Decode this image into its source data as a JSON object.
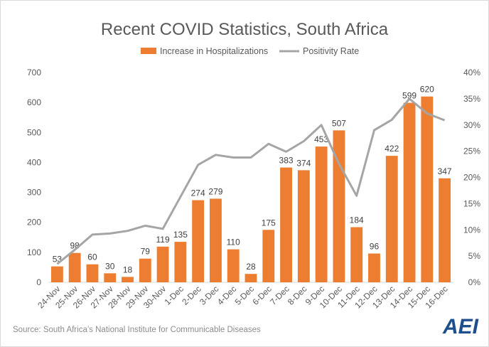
{
  "chart_data": {
    "type": "bar",
    "title": "Recent COVID Statistics, South Africa",
    "categories": [
      "24-Nov",
      "25-Nov",
      "26-Nov",
      "27-Nov",
      "28-Nov",
      "29-Nov",
      "30-Nov",
      "1-Dec",
      "2-Dec",
      "3-Dec",
      "4-Dec",
      "5-Dec",
      "6-Dec",
      "7-Dec",
      "8-Dec",
      "9-Dec",
      "10-Dec",
      "11-Dec",
      "12-Dec",
      "13-Dec",
      "14-Dec",
      "15-Dec",
      "16-Dec"
    ],
    "series": [
      {
        "name": "Increase in Hospitalizations",
        "type": "bar",
        "axis": "left",
        "color": "#ed7d31",
        "values": [
          53,
          98,
          60,
          30,
          18,
          79,
          119,
          135,
          274,
          279,
          110,
          28,
          175,
          383,
          374,
          453,
          507,
          184,
          96,
          422,
          599,
          620,
          347
        ]
      },
      {
        "name": "Positivity Rate",
        "type": "line",
        "axis": "right",
        "color": "#a5a5a5",
        "values": [
          3.5,
          6.2,
          9.1,
          9.3,
          9.8,
          10.8,
          10.2,
          16.3,
          22.4,
          24.3,
          23.8,
          23.8,
          26.4,
          24.9,
          26.9,
          30.0,
          22.6,
          16.5,
          29.0,
          31.0,
          35.0,
          32.2,
          30.9
        ]
      }
    ],
    "y_left": {
      "min": 0,
      "max": 700,
      "step": 100,
      "ticks": [
        "0",
        "100",
        "200",
        "300",
        "400",
        "500",
        "600",
        "700"
      ]
    },
    "y_right": {
      "min": 0,
      "max": 40,
      "step": 5,
      "ticks": [
        "0%",
        "5%",
        "10%",
        "15%",
        "20%",
        "25%",
        "30%",
        "35%",
        "40%"
      ]
    },
    "grid": false,
    "legend_position": "top"
  },
  "source": "Source: South Africa’s National Institute for Communicable Diseases",
  "logo_text": "AEI"
}
